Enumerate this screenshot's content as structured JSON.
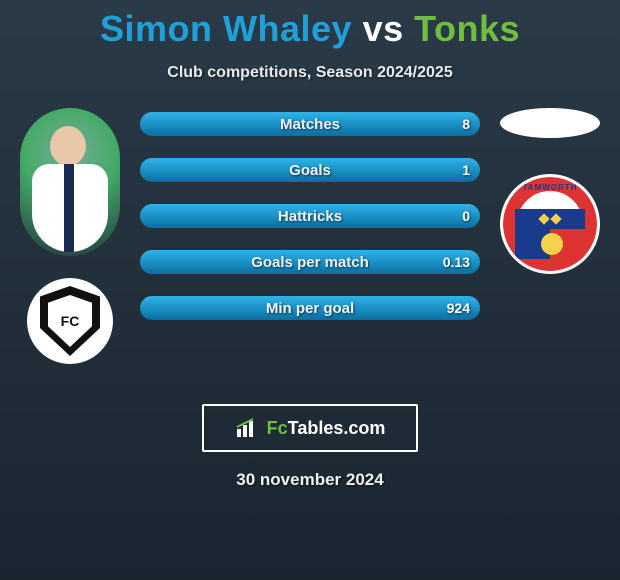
{
  "title": {
    "player1": "Simon Whaley",
    "vs": "vs",
    "player2": "Tonks"
  },
  "subtitle": "Club competitions, Season 2024/2025",
  "colors": {
    "player1": "#1fa0d8",
    "player2": "#6fbf3f",
    "bar_left_gradient": [
      "#2eb4e8",
      "#0a6ea0"
    ],
    "bar_right_gradient": [
      "#8ed058",
      "#4a8a20"
    ],
    "background_gradient": [
      "#2a3a47",
      "#1a2530"
    ],
    "text": "#ffffff"
  },
  "stats": [
    {
      "label": "Matches",
      "left_val": "",
      "right_val": "8",
      "left_pct": 100,
      "right_pct": 0
    },
    {
      "label": "Goals",
      "left_val": "",
      "right_val": "1",
      "left_pct": 100,
      "right_pct": 0
    },
    {
      "label": "Hattricks",
      "left_val": "",
      "right_val": "0",
      "left_pct": 100,
      "right_pct": 0
    },
    {
      "label": "Goals per match",
      "left_val": "",
      "right_val": "0.13",
      "left_pct": 100,
      "right_pct": 0
    },
    {
      "label": "Min per goal",
      "left_val": "",
      "right_val": "924",
      "left_pct": 100,
      "right_pct": 0
    }
  ],
  "club2_name": "TAMWORTH",
  "brand": {
    "prefix": "Fc",
    "suffix": "Tables.com"
  },
  "date": "30 november 2024"
}
